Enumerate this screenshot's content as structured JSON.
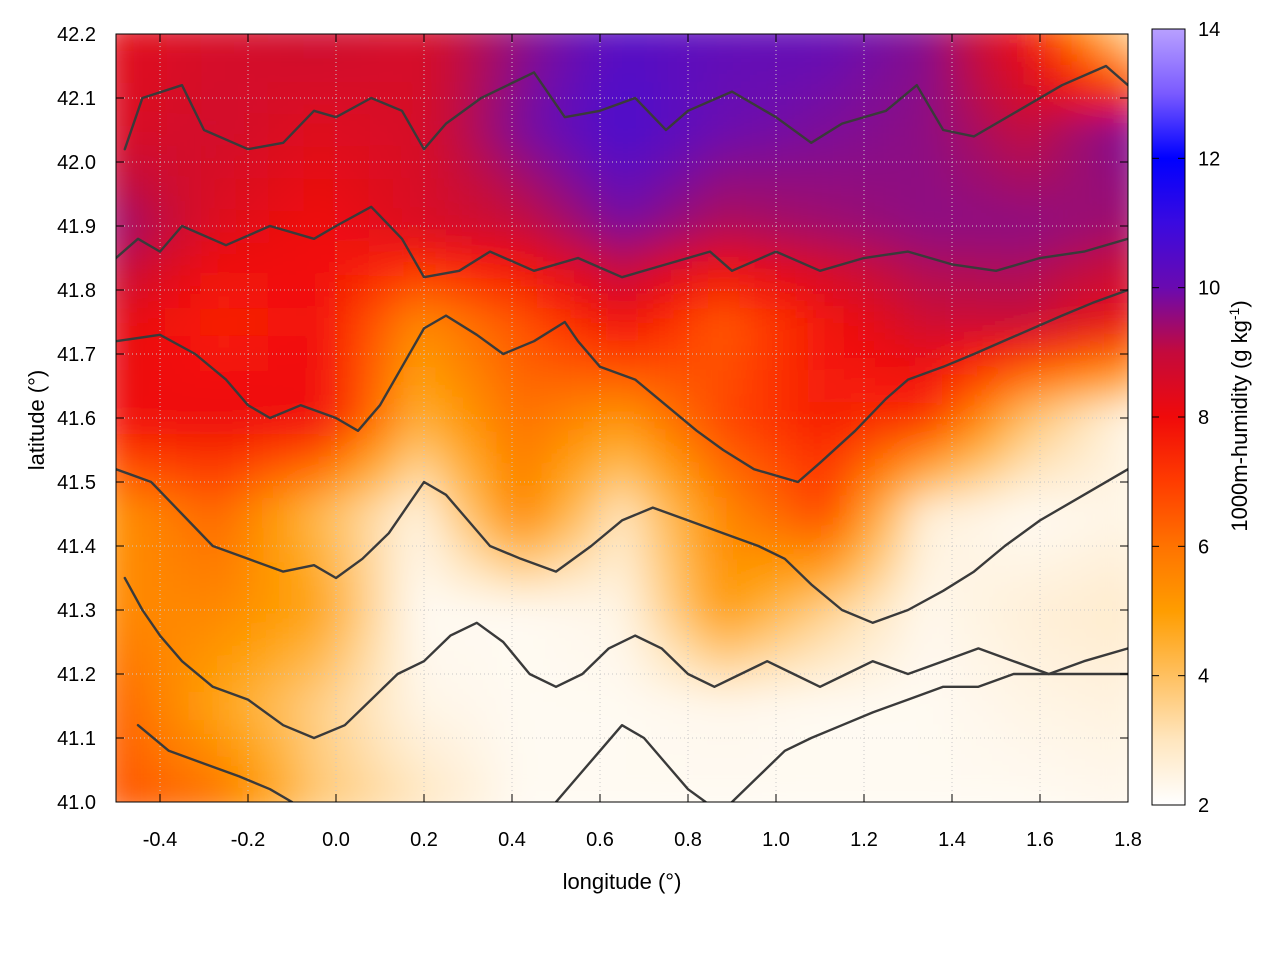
{
  "chart_data": {
    "type": "heatmap",
    "xlabel": "longitude (°)",
    "ylabel": "latitude (°)",
    "colorbar_label": "1000m-humidity (g kg-1)",
    "colorbar_label_base": "1000m-humidity (g kg",
    "colorbar_label_sup": "-1",
    "colorbar_label_close": ")",
    "xlim": [
      -0.5,
      1.8
    ],
    "ylim": [
      41.0,
      42.2
    ],
    "clim": [
      2,
      14
    ],
    "x_ticks": [
      "-0.4",
      "-0.2",
      "0.0",
      "0.2",
      "0.4",
      "0.6",
      "0.8",
      "1.0",
      "1.2",
      "1.4",
      "1.6",
      "1.8"
    ],
    "x_tick_values": [
      -0.4,
      -0.2,
      0.0,
      0.2,
      0.4,
      0.6,
      0.8,
      1.0,
      1.2,
      1.4,
      1.6,
      1.8
    ],
    "y_ticks": [
      "41.0",
      "41.1",
      "41.2",
      "41.3",
      "41.4",
      "41.5",
      "41.6",
      "41.7",
      "41.8",
      "41.9",
      "42.0",
      "42.1",
      "42.2"
    ],
    "y_tick_values": [
      41.0,
      41.1,
      41.2,
      41.3,
      41.4,
      41.5,
      41.6,
      41.7,
      41.8,
      41.9,
      42.0,
      42.1,
      42.2
    ],
    "colorbar_ticks": [
      "2",
      "4",
      "6",
      "8",
      "10",
      "12",
      "14"
    ],
    "colorbar_tick_values": [
      2,
      4,
      6,
      8,
      10,
      12,
      14
    ],
    "colormap": [
      {
        "value": 2,
        "color": "#ffffff"
      },
      {
        "value": 3,
        "color": "#ffe6bf"
      },
      {
        "value": 4,
        "color": "#ffc060"
      },
      {
        "value": 5,
        "color": "#ff9d00"
      },
      {
        "value": 6,
        "color": "#ff7300"
      },
      {
        "value": 7,
        "color": "#ff3c00"
      },
      {
        "value": 8,
        "color": "#f00a0a"
      },
      {
        "value": 9,
        "color": "#c40a3c"
      },
      {
        "value": 10,
        "color": "#6a0ab0"
      },
      {
        "value": 11,
        "color": "#3a0ae0"
      },
      {
        "value": 12,
        "color": "#0000ff"
      },
      {
        "value": 13,
        "color": "#7a5aff"
      },
      {
        "value": 14,
        "color": "#b8a0ff"
      }
    ],
    "humidity_field": {
      "x": [
        -0.5,
        -0.27,
        -0.04,
        0.19,
        0.42,
        0.65,
        0.88,
        1.11,
        1.34,
        1.57,
        1.8
      ],
      "y": [
        42.2,
        42.05,
        41.9,
        41.75,
        41.6,
        41.45,
        41.3,
        41.15,
        41.0
      ],
      "values": [
        [
          8.3,
          8.6,
          8.8,
          8.6,
          9.6,
          10.4,
          10.2,
          10.1,
          9.7,
          8.0,
          3.5
        ],
        [
          8.5,
          8.7,
          8.4,
          8.6,
          9.8,
          10.6,
          10.0,
          9.8,
          9.6,
          9.0,
          9.8
        ],
        [
          9.5,
          8.4,
          8.0,
          8.5,
          8.9,
          9.8,
          9.2,
          9.4,
          9.6,
          9.6,
          9.4
        ],
        [
          8.3,
          7.5,
          7.9,
          5.5,
          6.6,
          8.0,
          6.5,
          7.8,
          8.8,
          8.9,
          8.1
        ],
        [
          8.0,
          8.1,
          8.0,
          4.5,
          6.0,
          5.2,
          6.8,
          7.6,
          7.2,
          4.0,
          2.4
        ],
        [
          5.3,
          6.2,
          4.2,
          2.5,
          5.5,
          3.0,
          5.5,
          6.8,
          2.6,
          2.2,
          2.4
        ],
        [
          5.5,
          5.5,
          4.8,
          2.2,
          2.2,
          2.4,
          5.0,
          3.6,
          2.3,
          2.6,
          2.8
        ],
        [
          6.3,
          4.8,
          3.6,
          2.4,
          2.2,
          2.2,
          2.3,
          2.2,
          2.2,
          2.4,
          2.5
        ],
        [
          6.6,
          6.0,
          3.8,
          3.0,
          2.2,
          2.2,
          2.2,
          2.2,
          2.2,
          2.2,
          2.3
        ]
      ]
    },
    "contours": [
      [
        [
          -0.48,
          42.02
        ],
        [
          -0.44,
          42.1
        ],
        [
          -0.35,
          42.12
        ],
        [
          -0.3,
          42.05
        ],
        [
          -0.2,
          42.02
        ],
        [
          -0.12,
          42.03
        ],
        [
          -0.05,
          42.08
        ],
        [
          0.0,
          42.07
        ],
        [
          0.08,
          42.1
        ],
        [
          0.15,
          42.08
        ],
        [
          0.2,
          42.02
        ],
        [
          0.25,
          42.06
        ],
        [
          0.33,
          42.1
        ],
        [
          0.45,
          42.14
        ],
        [
          0.52,
          42.07
        ],
        [
          0.6,
          42.08
        ],
        [
          0.68,
          42.1
        ],
        [
          0.75,
          42.05
        ],
        [
          0.8,
          42.08
        ],
        [
          0.9,
          42.11
        ],
        [
          1.0,
          42.07
        ],
        [
          1.08,
          42.03
        ],
        [
          1.15,
          42.06
        ],
        [
          1.25,
          42.08
        ],
        [
          1.32,
          42.12
        ],
        [
          1.38,
          42.05
        ],
        [
          1.45,
          42.04
        ],
        [
          1.55,
          42.08
        ],
        [
          1.65,
          42.12
        ],
        [
          1.75,
          42.15
        ],
        [
          1.8,
          42.12
        ]
      ],
      [
        [
          -0.5,
          41.85
        ],
        [
          -0.45,
          41.88
        ],
        [
          -0.4,
          41.86
        ],
        [
          -0.35,
          41.9
        ],
        [
          -0.25,
          41.87
        ],
        [
          -0.15,
          41.9
        ],
        [
          -0.05,
          41.88
        ],
        [
          0.0,
          41.9
        ],
        [
          0.08,
          41.93
        ],
        [
          0.15,
          41.88
        ],
        [
          0.2,
          41.82
        ],
        [
          0.28,
          41.83
        ],
        [
          0.35,
          41.86
        ],
        [
          0.45,
          41.83
        ],
        [
          0.55,
          41.85
        ],
        [
          0.65,
          41.82
        ],
        [
          0.75,
          41.84
        ],
        [
          0.85,
          41.86
        ],
        [
          0.9,
          41.83
        ],
        [
          1.0,
          41.86
        ],
        [
          1.1,
          41.83
        ],
        [
          1.2,
          41.85
        ],
        [
          1.3,
          41.86
        ],
        [
          1.4,
          41.84
        ],
        [
          1.5,
          41.83
        ],
        [
          1.6,
          41.85
        ],
        [
          1.7,
          41.86
        ],
        [
          1.8,
          41.88
        ]
      ],
      [
        [
          -0.5,
          41.72
        ],
        [
          -0.4,
          41.73
        ],
        [
          -0.32,
          41.7
        ],
        [
          -0.25,
          41.66
        ],
        [
          -0.2,
          41.62
        ],
        [
          -0.15,
          41.6
        ],
        [
          -0.08,
          41.62
        ],
        [
          0.0,
          41.6
        ],
        [
          0.05,
          41.58
        ],
        [
          0.1,
          41.62
        ],
        [
          0.15,
          41.68
        ],
        [
          0.2,
          41.74
        ],
        [
          0.25,
          41.76
        ],
        [
          0.32,
          41.73
        ],
        [
          0.38,
          41.7
        ],
        [
          0.45,
          41.72
        ],
        [
          0.52,
          41.75
        ],
        [
          0.55,
          41.72
        ],
        [
          0.6,
          41.68
        ],
        [
          0.68,
          41.66
        ],
        [
          0.75,
          41.62
        ],
        [
          0.82,
          41.58
        ],
        [
          0.88,
          41.55
        ],
        [
          0.95,
          41.52
        ],
        [
          1.05,
          41.5
        ],
        [
          1.1,
          41.53
        ],
        [
          1.18,
          41.58
        ],
        [
          1.25,
          41.63
        ],
        [
          1.3,
          41.66
        ],
        [
          1.38,
          41.68
        ],
        [
          1.45,
          41.7
        ],
        [
          1.55,
          41.73
        ],
        [
          1.65,
          41.76
        ],
        [
          1.72,
          41.78
        ],
        [
          1.8,
          41.8
        ]
      ],
      [
        [
          -0.5,
          41.52
        ],
        [
          -0.42,
          41.5
        ],
        [
          -0.35,
          41.45
        ],
        [
          -0.28,
          41.4
        ],
        [
          -0.2,
          41.38
        ],
        [
          -0.12,
          41.36
        ],
        [
          -0.05,
          41.37
        ],
        [
          0.0,
          41.35
        ],
        [
          0.06,
          41.38
        ],
        [
          0.12,
          41.42
        ],
        [
          0.16,
          41.46
        ],
        [
          0.2,
          41.5
        ],
        [
          0.25,
          41.48
        ],
        [
          0.3,
          41.44
        ],
        [
          0.35,
          41.4
        ],
        [
          0.42,
          41.38
        ],
        [
          0.5,
          41.36
        ],
        [
          0.58,
          41.4
        ],
        [
          0.65,
          41.44
        ],
        [
          0.72,
          41.46
        ],
        [
          0.8,
          41.44
        ],
        [
          0.88,
          41.42
        ],
        [
          0.96,
          41.4
        ],
        [
          1.02,
          41.38
        ],
        [
          1.08,
          41.34
        ],
        [
          1.15,
          41.3
        ],
        [
          1.22,
          41.28
        ],
        [
          1.3,
          41.3
        ],
        [
          1.38,
          41.33
        ],
        [
          1.45,
          41.36
        ],
        [
          1.52,
          41.4
        ],
        [
          1.6,
          41.44
        ],
        [
          1.7,
          41.48
        ],
        [
          1.8,
          41.52
        ]
      ],
      [
        [
          -0.48,
          41.35
        ],
        [
          -0.44,
          41.3
        ],
        [
          -0.4,
          41.26
        ],
        [
          -0.35,
          41.22
        ],
        [
          -0.28,
          41.18
        ],
        [
          -0.2,
          41.16
        ],
        [
          -0.12,
          41.12
        ],
        [
          -0.05,
          41.1
        ],
        [
          0.02,
          41.12
        ],
        [
          0.08,
          41.16
        ],
        [
          0.14,
          41.2
        ],
        [
          0.2,
          41.22
        ],
        [
          0.26,
          41.26
        ],
        [
          0.32,
          41.28
        ],
        [
          0.38,
          41.25
        ],
        [
          0.44,
          41.2
        ],
        [
          0.5,
          41.18
        ],
        [
          0.56,
          41.2
        ],
        [
          0.62,
          41.24
        ],
        [
          0.68,
          41.26
        ],
        [
          0.74,
          41.24
        ],
        [
          0.8,
          41.2
        ],
        [
          0.86,
          41.18
        ],
        [
          0.92,
          41.2
        ],
        [
          0.98,
          41.22
        ],
        [
          1.04,
          41.2
        ],
        [
          1.1,
          41.18
        ],
        [
          1.16,
          41.2
        ],
        [
          1.22,
          41.22
        ],
        [
          1.3,
          41.2
        ],
        [
          1.38,
          41.22
        ],
        [
          1.46,
          41.24
        ],
        [
          1.54,
          41.22
        ],
        [
          1.62,
          41.2
        ],
        [
          1.7,
          41.22
        ],
        [
          1.8,
          41.24
        ]
      ],
      [
        [
          -0.45,
          41.12
        ],
        [
          -0.38,
          41.08
        ],
        [
          -0.3,
          41.06
        ],
        [
          -0.22,
          41.04
        ],
        [
          -0.15,
          41.02
        ],
        [
          -0.1,
          41.0
        ]
      ],
      [
        [
          0.5,
          41.0
        ],
        [
          0.55,
          41.04
        ],
        [
          0.6,
          41.08
        ],
        [
          0.65,
          41.12
        ],
        [
          0.7,
          41.1
        ],
        [
          0.75,
          41.06
        ],
        [
          0.8,
          41.02
        ],
        [
          0.84,
          41.0
        ]
      ],
      [
        [
          0.9,
          41.0
        ],
        [
          0.96,
          41.04
        ],
        [
          1.02,
          41.08
        ],
        [
          1.08,
          41.1
        ],
        [
          1.15,
          41.12
        ],
        [
          1.22,
          41.14
        ],
        [
          1.3,
          41.16
        ],
        [
          1.38,
          41.18
        ],
        [
          1.46,
          41.18
        ],
        [
          1.54,
          41.2
        ],
        [
          1.62,
          41.2
        ],
        [
          1.7,
          41.2
        ],
        [
          1.8,
          41.2
        ]
      ]
    ]
  }
}
